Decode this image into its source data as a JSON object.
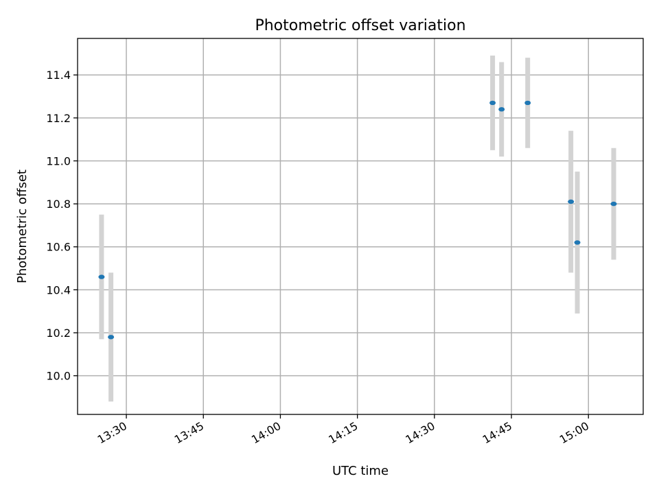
{
  "chart_data": {
    "type": "scatter",
    "title": "Photometric offset variation",
    "xlabel": "UTC time",
    "ylabel": "Photometric offset",
    "xlim": [
      "13:20:30",
      "15:10:40"
    ],
    "ylim": [
      9.82,
      11.57
    ],
    "x_ticks": [
      "13:30",
      "13:45",
      "14:00",
      "14:15",
      "14:30",
      "14:45",
      "15:00"
    ],
    "y_ticks": [
      "10.0",
      "10.2",
      "10.4",
      "10.6",
      "10.8",
      "11.0",
      "11.2",
      "11.4"
    ],
    "grid": true,
    "marker_color": "#1f77b4",
    "errorbar_color": "#d3d3d3",
    "points": [
      {
        "x": "13:25:10",
        "y": 10.46,
        "err": 0.29
      },
      {
        "x": "13:27:00",
        "y": 10.18,
        "err": 0.3
      },
      {
        "x": "14:41:20",
        "y": 11.27,
        "err": 0.22
      },
      {
        "x": "14:43:05",
        "y": 11.24,
        "err": 0.22
      },
      {
        "x": "14:48:10",
        "y": 11.27,
        "err": 0.21
      },
      {
        "x": "14:56:35",
        "y": 10.81,
        "err": 0.33
      },
      {
        "x": "14:57:50",
        "y": 10.62,
        "err": 0.33
      },
      {
        "x": "15:04:55",
        "y": 10.8,
        "err": 0.26
      }
    ]
  }
}
